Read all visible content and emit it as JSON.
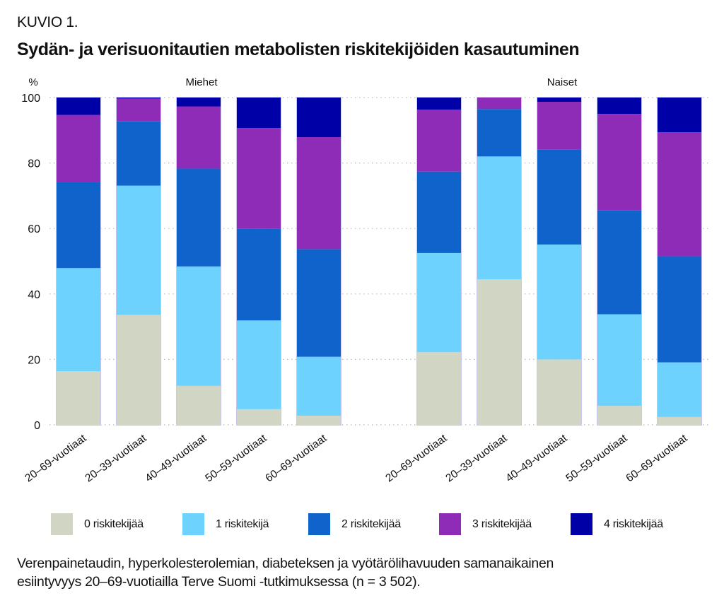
{
  "figure_label": "KUVIO 1.",
  "title": "Sydän- ja verisuonitautien metabolisten riskitekijöiden kasautuminen",
  "caption_line1": "Verenpainetaudin, hyperkolesterolemian, diabeteksen ja vyötärölihavuuden samanaikainen",
  "caption_line2": "esiintyvyys 20–69-vuotiailla Terve Suomi -tutkimuksessa (n = 3 502).",
  "chart_data": {
    "type": "bar",
    "stacked": true,
    "title": "Sydän- ja verisuonitautien metabolisten riskitekijöiden kasautuminen",
    "ylabel": "%",
    "xlabel": "",
    "ylim": [
      0,
      100
    ],
    "yticks": [
      0,
      20,
      40,
      60,
      80,
      100
    ],
    "grid": true,
    "legend_position": "bottom",
    "panels": [
      {
        "name": "Miehet",
        "categories": [
          "20–69-vuotiaat",
          "20–39-vuotiaat",
          "40–49-vuotiaat",
          "50–59-vuotiaat",
          "60–69-vuotiaat"
        ],
        "series": [
          {
            "name": "0 riskitekijää",
            "color": "#d1d5c4",
            "values": [
              16.4,
              33.6,
              11.9,
              4.8,
              2.8
            ]
          },
          {
            "name": "1 riskitekijä",
            "color": "#6dd2fd",
            "values": [
              31.5,
              39.5,
              36.5,
              27.1,
              18.0
            ]
          },
          {
            "name": "2 riskitekijää",
            "color": "#0f63cb",
            "values": [
              26.3,
              19.6,
              29.9,
              28.0,
              32.9
            ]
          },
          {
            "name": "3 riskitekijää",
            "color": "#8e2cb8",
            "values": [
              20.5,
              7.0,
              19.0,
              30.8,
              34.2
            ]
          },
          {
            "name": "4 riskitekijää",
            "color": "#0000a7",
            "values": [
              5.3,
              0.3,
              2.7,
              9.3,
              12.1
            ]
          }
        ]
      },
      {
        "name": "Naiset",
        "categories": [
          "20–69-vuotiaat",
          "20–39-vuotiaat",
          "40–49-vuotiaat",
          "50–59-vuotiaat",
          "60–69-vuotiaat"
        ],
        "series": [
          {
            "name": "0 riskitekijää",
            "color": "#d1d5c4",
            "values": [
              22.2,
              44.5,
              20.0,
              5.8,
              2.4
            ]
          },
          {
            "name": "1 riskitekijä",
            "color": "#6dd2fd",
            "values": [
              30.3,
              37.5,
              35.1,
              28.0,
              16.7
            ]
          },
          {
            "name": "2 riskitekijää",
            "color": "#0f63cb",
            "values": [
              24.9,
              14.5,
              29.1,
              31.7,
              32.4
            ]
          },
          {
            "name": "3 riskitekijää",
            "color": "#8e2cb8",
            "values": [
              18.9,
              3.5,
              14.5,
              29.5,
              37.9
            ]
          },
          {
            "name": "4 riskitekijää",
            "color": "#0000a7",
            "values": [
              3.7,
              0.0,
              1.3,
              5.0,
              10.6
            ]
          }
        ]
      }
    ]
  }
}
